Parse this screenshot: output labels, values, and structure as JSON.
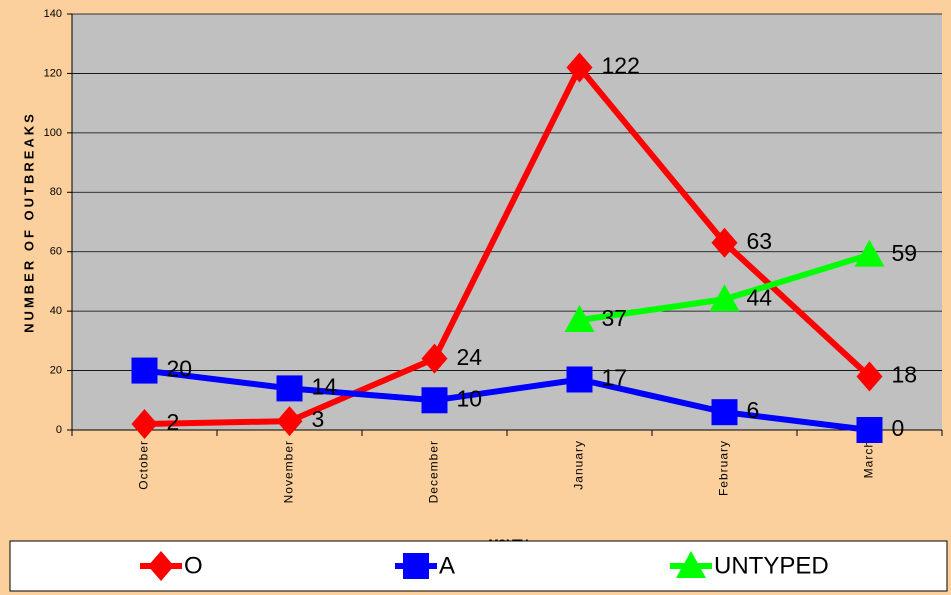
{
  "chart_data": {
    "type": "line",
    "x_label": "MONTH",
    "y_label": "NUMBER OF OUTBREAKS",
    "categories": [
      "October",
      "November",
      "December",
      "January",
      "February",
      "March"
    ],
    "series": [
      {
        "name": "O",
        "color": "#ff0000",
        "marker": "diamond",
        "values": [
          2,
          3,
          24,
          122,
          63,
          18
        ]
      },
      {
        "name": "A",
        "color": "#0000ff",
        "marker": "square",
        "values": [
          20,
          14,
          10,
          17,
          6,
          0
        ]
      },
      {
        "name": "UNTYPED",
        "color": "#00ff00",
        "marker": "triangle",
        "values": [
          null,
          null,
          null,
          37,
          44,
          59
        ]
      }
    ],
    "ylim": [
      0,
      140
    ],
    "yticks": [
      0,
      20,
      40,
      60,
      80,
      100,
      120,
      140
    ],
    "grid": true,
    "legend": "bottom"
  }
}
